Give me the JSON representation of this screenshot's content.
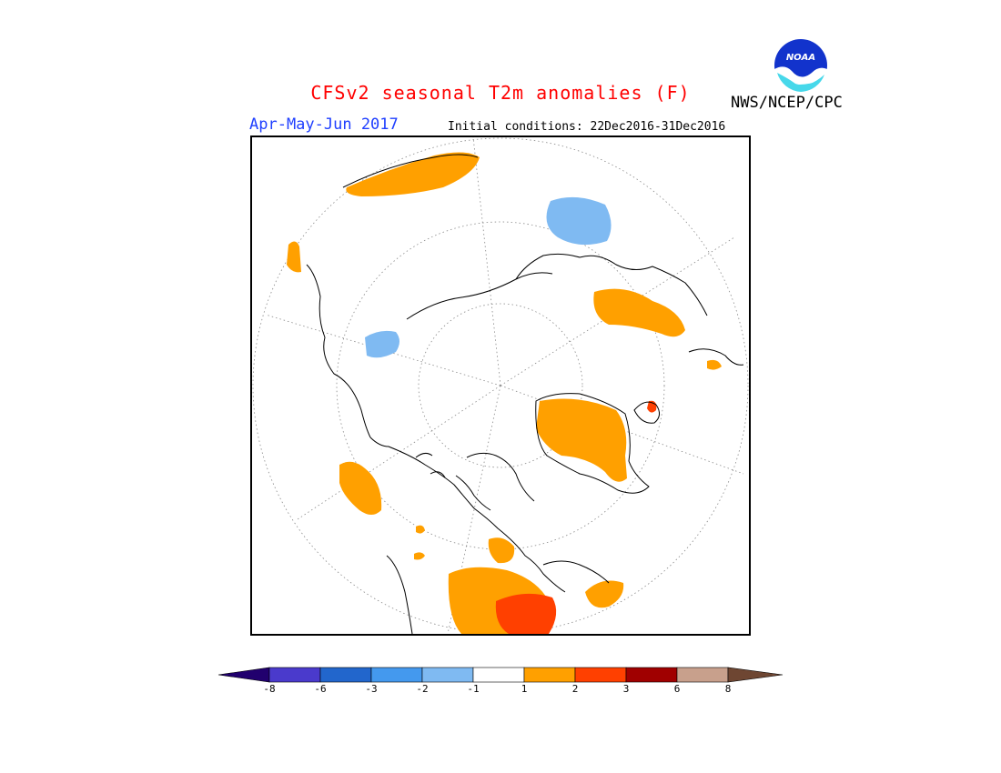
{
  "title": "CFSv2 seasonal T2m anomalies (F)",
  "period": "Apr-May-Jun 2017",
  "initial_conditions": "Initial conditions: 22Dec2016-31Dec2016",
  "agency": "NWS/NCEP/CPC",
  "logo_text": "NOAA",
  "colors": {
    "title": "#ff0000",
    "period": "#1f3fff",
    "land_outline": "#000000",
    "grid": "#888888"
  },
  "legend": {
    "ticks": [
      "-8",
      "-6",
      "-3",
      "-2",
      "-1",
      "1",
      "2",
      "3",
      "6",
      "8"
    ],
    "bins": [
      {
        "range": "< -8",
        "color": "#21006e"
      },
      {
        "range": "-8 to -6",
        "color": "#4a3acc"
      },
      {
        "range": "-6 to -3",
        "color": "#2266cc"
      },
      {
        "range": "-3 to -2",
        "color": "#4499ee"
      },
      {
        "range": "-2 to -1",
        "color": "#7fbaf2"
      },
      {
        "range": "-1 to 1",
        "color": "#ffffff"
      },
      {
        "range": "1 to 2",
        "color": "#ffa000"
      },
      {
        "range": "2 to 3",
        "color": "#ff4000"
      },
      {
        "range": "3 to 6",
        "color": "#a00000"
      },
      {
        "range": "6 to 8",
        "color": "#c8a08c"
      },
      {
        "range": "> 8",
        "color": "#6e4632"
      }
    ]
  },
  "map": {
    "projection": "north polar stereographic",
    "anomaly_regions": [
      {
        "area": "northeastern Asia / Bering Sea",
        "category": "1 to 2"
      },
      {
        "area": "western Alaska",
        "category": "1 to 2"
      },
      {
        "area": "northwestern Canada",
        "category": "-2 to -1"
      },
      {
        "area": "western Canada / US northwest",
        "category": "1 to 2"
      },
      {
        "area": "Greenland",
        "category": "1 to 2"
      },
      {
        "area": "eastern Greenland coast",
        "category": "2 to 3"
      },
      {
        "area": "western Siberia (Kara Sea region)",
        "category": "-2 to -1"
      },
      {
        "area": "northwestern Russia / Scandinavia",
        "category": "1 to 2"
      },
      {
        "area": "southeastern United States",
        "category": "1 to 2"
      },
      {
        "area": "Gulf of Mexico / Texas",
        "category": "2 to 3"
      },
      {
        "area": "northeastern United States / Atlantic Canada",
        "category": "1 to 2"
      }
    ]
  }
}
